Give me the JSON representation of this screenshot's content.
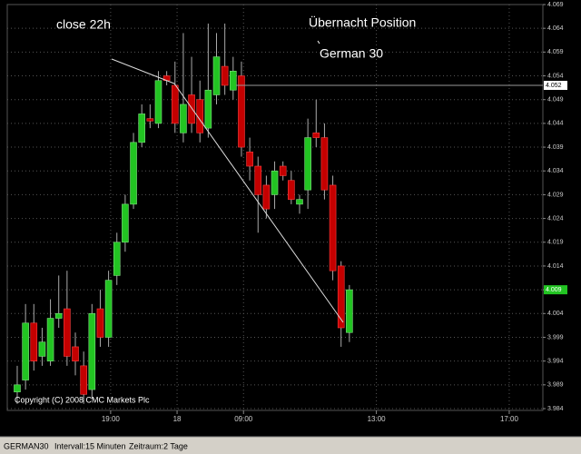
{
  "chart_data": {
    "type": "candlestick",
    "annotations": [
      "close 22h",
      "Übernacht Position",
      "German 30"
    ],
    "copyright": "Copyright (C) 2008 CMC Markets Plc",
    "x": [
      0,
      1,
      2,
      3,
      4,
      5,
      6,
      7,
      8,
      9,
      10,
      11,
      12,
      13,
      14,
      15,
      16,
      17,
      18,
      19,
      20,
      21,
      22,
      23,
      24,
      25,
      26,
      27,
      28,
      29,
      30,
      31,
      32,
      33,
      34,
      35,
      36,
      37,
      38,
      39,
      40
    ],
    "open": [
      3.9875,
      3.99,
      4.002,
      3.995,
      3.994,
      4.003,
      4.005,
      3.997,
      3.993,
      3.988,
      4.005,
      3.999,
      4.012,
      4.019,
      4.027,
      4.04,
      4.045,
      4.044,
      4.054,
      4.052,
      4.042,
      4.05,
      4.049,
      4.043,
      4.05,
      4.056,
      4.051,
      4.054,
      4.038,
      4.035,
      4.031,
      4.029,
      4.035,
      4.032,
      4.027,
      4.03,
      4.042,
      4.041,
      4.031,
      4.014,
      4.0
    ],
    "high": [
      3.993,
      4.006,
      4.006,
      4.001,
      4.007,
      4.012,
      4.013,
      4.0,
      3.996,
      4.006,
      4.009,
      4.013,
      4.021,
      4.029,
      4.042,
      4.048,
      4.048,
      4.055,
      4.055,
      4.057,
      4.063,
      4.058,
      4.053,
      4.065,
      4.063,
      4.065,
      4.058,
      4.057,
      4.041,
      4.037,
      4.033,
      4.036,
      4.036,
      4.034,
      4.029,
      4.045,
      4.049,
      4.044,
      4.033,
      4.015,
      4.01
    ],
    "low": [
      3.985,
      3.988,
      3.992,
      3.993,
      3.993,
      4.001,
      3.993,
      3.991,
      3.985,
      3.986,
      3.997,
      3.997,
      4.01,
      4.017,
      4.026,
      4.039,
      4.043,
      4.043,
      4.052,
      4.042,
      4.04,
      4.042,
      4.04,
      4.041,
      4.048,
      4.05,
      4.049,
      4.037,
      4.032,
      4.021,
      4.024,
      4.026,
      4.032,
      4.027,
      4.025,
      4.026,
      4.039,
      4.028,
      4.011,
      3.997,
      3.998
    ],
    "close": [
      3.989,
      4.002,
      3.994,
      3.998,
      4.003,
      4.004,
      3.995,
      3.994,
      3.987,
      4.004,
      3.999,
      4.011,
      4.019,
      4.027,
      4.04,
      4.046,
      4.0445,
      4.053,
      4.053,
      4.044,
      4.048,
      4.044,
      4.042,
      4.051,
      4.058,
      4.052,
      4.055,
      4.039,
      4.035,
      4.029,
      4.026,
      4.034,
      4.033,
      4.028,
      4.028,
      4.041,
      4.041,
      4.03,
      4.013,
      4.001,
      4.009
    ],
    "up_color": "#22c422",
    "down_color": "#c40000",
    "xlim": [
      -1.2,
      63.3
    ],
    "xticks": [
      {
        "value": 11.25,
        "label": "19:00"
      },
      {
        "value": 19.25,
        "label": "18"
      },
      {
        "value": 27.25,
        "label": "09:00"
      },
      {
        "value": 43.25,
        "label": "13:00"
      },
      {
        "value": 59.25,
        "label": "17:00"
      }
    ],
    "ylim": [
      3.984,
      4.069
    ],
    "yticks": [
      3.984,
      3.989,
      3.994,
      3.999,
      4.004,
      4.009,
      4.014,
      4.019,
      4.024,
      4.029,
      4.034,
      4.039,
      4.044,
      4.049,
      4.054,
      4.059,
      4.064,
      4.069
    ],
    "reference_price": 4.052,
    "last_price": 4.009,
    "grid": true,
    "status": [
      "GERMAN30",
      "Intervall:15 Minuten",
      "Zeitraum:2 Tage"
    ]
  }
}
